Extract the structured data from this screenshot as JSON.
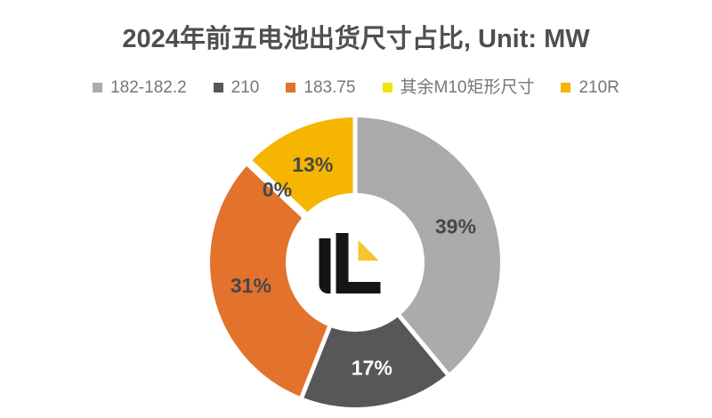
{
  "title": "2024年前五电池出货尺寸占比, Unit: MW",
  "background": "#FFFFFF",
  "legend": {
    "items": [
      {
        "label": "182-182.2",
        "color": "#ABABAB"
      },
      {
        "label": "210",
        "color": "#575757"
      },
      {
        "label": "183.75",
        "color": "#E3722C"
      },
      {
        "label": "其余M10矩形尺寸",
        "color": "#F2E500"
      },
      {
        "label": "210R",
        "color": "#F5B500"
      }
    ]
  },
  "chart_data": {
    "type": "pie",
    "subtype": "donut",
    "title": "2024年前五电池出货尺寸占比, Unit: MW",
    "unit": "MW",
    "start_angle_deg": 0,
    "direction": "clockwise",
    "legend_position": "top",
    "categories": [
      "182-182.2",
      "210",
      "183.75",
      "其余M10矩形尺寸",
      "210R"
    ],
    "values": [
      39,
      17,
      31,
      0,
      13
    ],
    "percent_labels": [
      "39%",
      "17%",
      "31%",
      "0%",
      "13%"
    ],
    "colors": [
      "#ABABAB",
      "#575757",
      "#E3722C",
      "#F2E500",
      "#F5B500"
    ],
    "percent_label_colors": [
      "#474747",
      "#FFFFFF",
      "#474747",
      "#474747",
      "#474747"
    ],
    "inner_radius_ratio": 0.48,
    "gap_color": "#FFFFFF",
    "center_logo": "infolink-IL-logo"
  },
  "logo": {
    "bar_color": "#151515",
    "triangle_color": "#F6C52E"
  }
}
